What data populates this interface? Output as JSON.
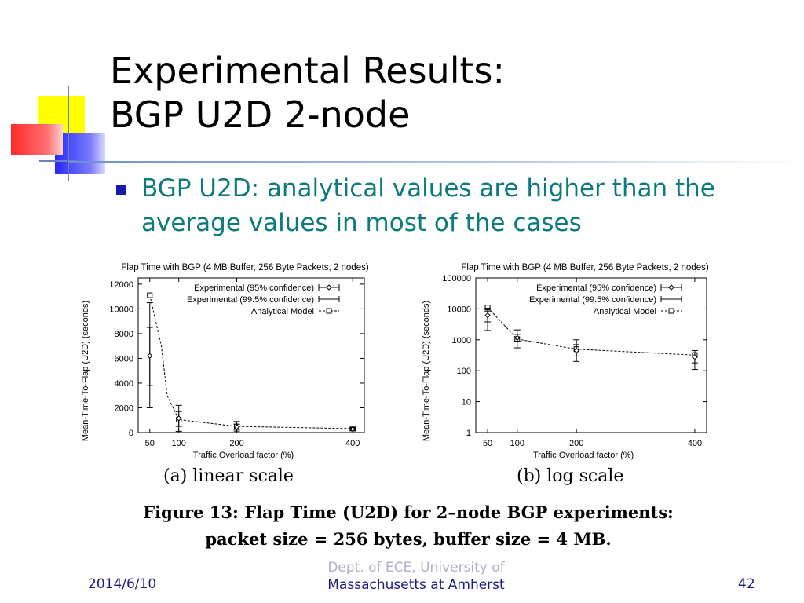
{
  "slide": {
    "title_line1": "Experimental Results:",
    "title_line2": "BGP U2D 2-node",
    "bullet": "BGP U2D: analytical values are higher than the average values in most of the cases",
    "caption_line1": "Figure 13: Flap Time (U2D) for 2–node BGP experiments:",
    "caption_line2": "packet size = 256 bytes, buffer size = 4 MB.",
    "footer_date": "2014/6/10",
    "footer_center_top": "Dept. of ECE, University of",
    "footer_center_bottom": "Massachusetts at Amherst",
    "footer_page": "42",
    "accent_colors": {
      "yellow": "#ffff00",
      "red": "#ff3030",
      "blue": "#3030ff",
      "bullet": "#1a1aa8",
      "bullet_text": "#0d7b7b"
    }
  },
  "chart_data": [
    {
      "type": "line",
      "subcaption": "(a) linear scale",
      "title": "Flap Time with BGP (4 MB Buffer, 256 Byte Packets, 2 nodes)",
      "xlabel": "Traffic Overload factor (%)",
      "ylabel": "Mean-Time-To-Flap (U2D) (seconds)",
      "yscale": "linear",
      "xlim": [
        30,
        420
      ],
      "ylim": [
        0,
        12500
      ],
      "xticks": [
        50,
        100,
        200,
        400
      ],
      "yticks": [
        0,
        2000,
        4000,
        6000,
        8000,
        10000,
        12000
      ],
      "legend_position": "top-right",
      "series": [
        {
          "name": "Experimental (95% confidence)",
          "marker": "diamond",
          "x": [
            50,
            100,
            200,
            400
          ],
          "y": [
            6200,
            1150,
            450,
            280
          ],
          "err_low": [
            3800,
            500,
            250,
            200
          ],
          "err_high": [
            8500,
            1700,
            680,
            360
          ]
        },
        {
          "name": "Experimental (99.5% confidence)",
          "marker": "none",
          "x": [
            50,
            100,
            200,
            400
          ],
          "y": [
            6200,
            1150,
            450,
            280
          ],
          "err_low": [
            2000,
            100,
            120,
            150
          ],
          "err_high": [
            10500,
            2200,
            900,
            420
          ]
        },
        {
          "name": "Analytical Model",
          "marker": "square",
          "dashed": true,
          "x": [
            50,
            70,
            80,
            100,
            200,
            400
          ],
          "y": [
            11100,
            7000,
            3000,
            1050,
            500,
            320
          ]
        }
      ]
    },
    {
      "type": "line",
      "subcaption": "(b) log scale",
      "title": "Flap Time with BGP (4 MB Buffer, 256 Byte Packets, 2 nodes)",
      "xlabel": "Traffic Overload factor (%)",
      "ylabel": "Mean-Time-To-Flap (U2D) (seconds)",
      "yscale": "log",
      "xlim": [
        30,
        420
      ],
      "ylim": [
        1,
        100000
      ],
      "xticks": [
        50,
        100,
        200,
        400
      ],
      "yticks": [
        1,
        10,
        100,
        1000,
        10000,
        100000
      ],
      "legend_position": "top-right",
      "series": [
        {
          "name": "Experimental (95% confidence)",
          "marker": "diamond",
          "x": [
            50,
            100,
            200,
            400
          ],
          "y": [
            6200,
            1150,
            450,
            280
          ],
          "err_low": [
            3800,
            900,
            300,
            180
          ],
          "err_high": [
            8500,
            1500,
            700,
            380
          ]
        },
        {
          "name": "Experimental (99.5% confidence)",
          "marker": "none",
          "x": [
            50,
            100,
            200,
            400
          ],
          "y": [
            6200,
            1150,
            450,
            280
          ],
          "err_low": [
            2000,
            550,
            200,
            110
          ],
          "err_high": [
            10500,
            2100,
            1000,
            450
          ]
        },
        {
          "name": "Analytical Model",
          "marker": "square",
          "dashed": true,
          "x": [
            50,
            100,
            200,
            400
          ],
          "y": [
            11100,
            1050,
            500,
            320
          ]
        }
      ]
    }
  ]
}
